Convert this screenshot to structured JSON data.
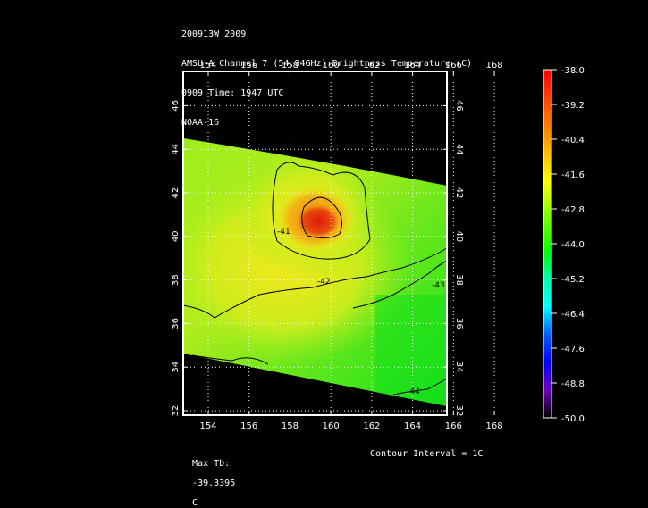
{
  "header": {
    "line1": "200913W 2009",
    "line2": "AMSU-A Channel 7 (54.94GHz) Brightness Temperature (C)",
    "line3": "0909 Time: 1947 UTC",
    "line4": "NOAA-16"
  },
  "map": {
    "lon_ticks": [
      "154",
      "156",
      "158",
      "160",
      "162",
      "164",
      "166",
      "168"
    ],
    "lat_ticks": [
      "32",
      "34",
      "36",
      "38",
      "40",
      "42",
      "44",
      "46"
    ],
    "contour_labels": [
      "-41",
      "-42",
      "-43",
      "-44"
    ]
  },
  "colorbar": {
    "ticks": [
      "-38.0",
      "-39.2",
      "-40.4",
      "-41.6",
      "-42.8",
      "-44.0",
      "-45.2",
      "-46.4",
      "-47.6",
      "-48.8",
      "-50.0"
    ]
  },
  "footer": {
    "max_tb_label": "Max Tb:",
    "max_tb_value": "-39.3395",
    "max_tb_unit": "C",
    "contour_interval": "Contour Interval = 1C"
  },
  "colors": {
    "background": "#000000",
    "frame": "#ffffff",
    "cold": "#00e01a",
    "warm_core": "#e51c0c"
  }
}
